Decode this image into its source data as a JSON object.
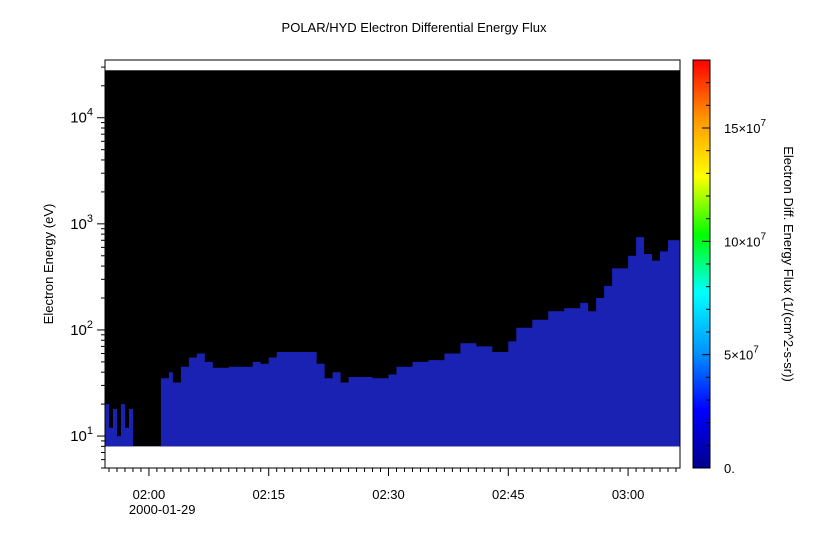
{
  "chart_data": {
    "type": "heatmap",
    "title": "POLAR/HYD  Electron Differential Energy Flux",
    "ylabel": "Electron Energy (eV)",
    "colorbar_label": "Electron Diff. Energy Flux (1/(cm^2-s-sr))",
    "x_tick_labels": [
      "02:00",
      "02:15",
      "02:30",
      "02:45",
      "03:00"
    ],
    "x_date_label": "2000-01-29",
    "x_range": [
      "2000-01-29T01:54:30",
      "2000-01-29T03:06:30"
    ],
    "y_scale": "log",
    "y_range_ev": [
      5,
      35000
    ],
    "y_tick_labels": [
      {
        "base": "10",
        "exp": "1",
        "value": 10
      },
      {
        "base": "10",
        "exp": "2",
        "value": 100
      },
      {
        "base": "10",
        "exp": "3",
        "value": 1000
      },
      {
        "base": "10",
        "exp": "4",
        "value": 10000
      }
    ],
    "data_energy_range_ev": [
      8,
      28000
    ],
    "colorbar_range": [
      0,
      180000000
    ],
    "colorbar_ticks": [
      {
        "label": "0.",
        "exp": "",
        "value": 0
      },
      {
        "label": "5×10",
        "exp": "7",
        "value": 50000000
      },
      {
        "label": "10×10",
        "exp": "7",
        "value": 100000000
      },
      {
        "label": "15×10",
        "exp": "7",
        "value": 150000000
      }
    ],
    "colormap": [
      "#00008c",
      "#0000ff",
      "#0096ff",
      "#00ffff",
      "#00ff00",
      "#ffff00",
      "#ff9600",
      "#ff0000"
    ],
    "background_fill_color": "#000000",
    "signal_color": "#1a22b4",
    "envelope_upper_ev": [
      [
        "01:54:30",
        20
      ],
      [
        "01:55:00",
        12
      ],
      [
        "01:55:30",
        18
      ],
      [
        "01:56:00",
        10
      ],
      [
        "01:56:30",
        20
      ],
      [
        "01:57:00",
        12
      ],
      [
        "01:57:30",
        18
      ],
      [
        "01:58:00",
        8
      ],
      [
        "01:59:30",
        8
      ],
      [
        "02:01:00",
        8
      ],
      [
        "02:01:30",
        35
      ],
      [
        "02:02:30",
        40
      ],
      [
        "02:03:00",
        32
      ],
      [
        "02:04:00",
        45
      ],
      [
        "02:05:00",
        55
      ],
      [
        "02:06:00",
        60
      ],
      [
        "02:07:00",
        50
      ],
      [
        "02:08:00",
        44
      ],
      [
        "02:10:00",
        45
      ],
      [
        "02:12:00",
        45
      ],
      [
        "02:13:00",
        50
      ],
      [
        "02:14:00",
        48
      ],
      [
        "02:15:00",
        55
      ],
      [
        "02:16:00",
        62
      ],
      [
        "02:18:00",
        62
      ],
      [
        "02:20:00",
        62
      ],
      [
        "02:21:00",
        48
      ],
      [
        "02:22:00",
        35
      ],
      [
        "02:23:00",
        40
      ],
      [
        "02:24:00",
        32
      ],
      [
        "02:25:00",
        36
      ],
      [
        "02:28:00",
        35
      ],
      [
        "02:30:00",
        38
      ],
      [
        "02:31:00",
        45
      ],
      [
        "02:33:00",
        50
      ],
      [
        "02:35:00",
        52
      ],
      [
        "02:37:00",
        60
      ],
      [
        "02:39:00",
        75
      ],
      [
        "02:41:00",
        70
      ],
      [
        "02:43:00",
        62
      ],
      [
        "02:45:00",
        78
      ],
      [
        "02:46:00",
        105
      ],
      [
        "02:48:00",
        125
      ],
      [
        "02:50:00",
        150
      ],
      [
        "02:52:00",
        160
      ],
      [
        "02:54:00",
        180
      ],
      [
        "02:55:00",
        150
      ],
      [
        "02:56:00",
        200
      ],
      [
        "02:57:00",
        260
      ],
      [
        "02:58:00",
        380
      ],
      [
        "03:00:00",
        500
      ],
      [
        "03:01:00",
        750
      ],
      [
        "03:02:00",
        520
      ],
      [
        "03:03:00",
        450
      ],
      [
        "03:04:00",
        550
      ],
      [
        "03:05:00",
        700
      ],
      [
        "03:06:30",
        650
      ]
    ]
  }
}
